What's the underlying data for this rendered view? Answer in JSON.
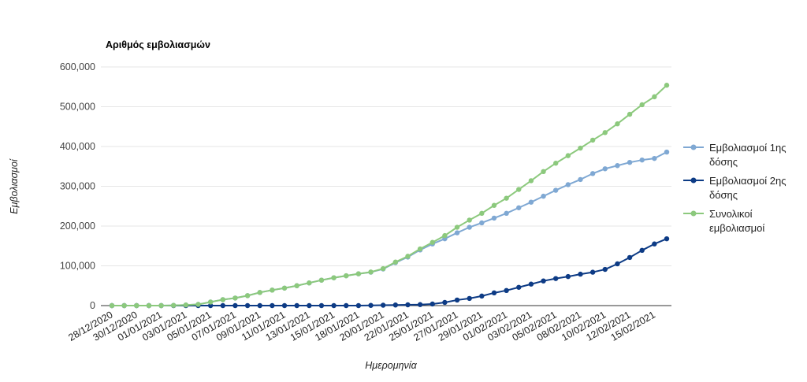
{
  "chart_data": {
    "type": "line",
    "title": "Αριθμός εμβολιασμών",
    "xlabel": "Ημερομηνία",
    "ylabel": "Εμβολιασμοί",
    "ylim": [
      0,
      600000
    ],
    "yticks": [
      "0",
      "100,000",
      "200,000",
      "300,000",
      "400,000",
      "500,000",
      "600,000"
    ],
    "grid": true,
    "legend_position": "right",
    "x": [
      "28/12/2020",
      "29/12/2020",
      "30/12/2020",
      "31/12/2020",
      "01/01/2021",
      "02/01/2021",
      "03/01/2021",
      "04/01/2021",
      "05/01/2021",
      "06/01/2021",
      "07/01/2021",
      "08/01/2021",
      "09/01/2021",
      "10/01/2021",
      "11/01/2021",
      "12/01/2021",
      "13/01/2021",
      "14/01/2021",
      "15/01/2021",
      "17/01/2021",
      "18/01/2021",
      "19/01/2021",
      "20/01/2021",
      "21/01/2021",
      "22/01/2021",
      "24/01/2021",
      "25/01/2021",
      "26/01/2021",
      "27/01/2021",
      "28/01/2021",
      "29/01/2021",
      "31/01/2021",
      "01/02/2021",
      "02/02/2021",
      "03/02/2021",
      "04/02/2021",
      "05/02/2021",
      "07/02/2021",
      "08/02/2021",
      "09/02/2021",
      "10/02/2021",
      "11/02/2021",
      "12/02/2021",
      "14/02/2021",
      "15/02/2021",
      "16/02/2021"
    ],
    "xtick_labels": [
      "28/12/2020",
      "30/12/2020",
      "01/01/2021",
      "03/01/2021",
      "05/01/2021",
      "07/01/2021",
      "09/01/2021",
      "11/01/2021",
      "13/01/2021",
      "15/01/2021",
      "18/01/2021",
      "20/01/2021",
      "22/01/2021",
      "25/01/2021",
      "27/01/2021",
      "29/01/2021",
      "01/02/2021",
      "03/02/2021",
      "05/02/2021",
      "08/02/2021",
      "10/02/2021",
      "12/02/2021",
      "15/02/2021"
    ],
    "series": [
      {
        "name": "Εμβολιασμοί 1ης δόσης",
        "legend_lines": [
          "Εμβολιασμοί 1ης",
          "δόσης"
        ],
        "color": "#7fa8d3",
        "values": [
          0,
          0,
          0,
          0,
          0,
          500,
          1500,
          3000,
          9000,
          15000,
          19000,
          25000,
          33000,
          39000,
          44000,
          50000,
          57000,
          64000,
          70000,
          75000,
          80000,
          84000,
          92000,
          108000,
          122000,
          140000,
          155000,
          168000,
          183000,
          197000,
          208000,
          220000,
          232000,
          246000,
          260000,
          275000,
          290000,
          304000,
          317000,
          332000,
          344000,
          352000,
          360000,
          366000,
          370000,
          386000
        ]
      },
      {
        "name": "Εμβολιασμοί 2ης δόσης",
        "legend_lines": [
          "Εμβολιασμοί 2ης",
          "δόσης"
        ],
        "color": "#0d3b85",
        "values": [
          0,
          0,
          0,
          0,
          0,
          0,
          0,
          0,
          0,
          0,
          0,
          0,
          0,
          0,
          0,
          0,
          0,
          0,
          0,
          0,
          0,
          500,
          1000,
          1500,
          2000,
          2500,
          4000,
          8000,
          14000,
          18000,
          24000,
          32000,
          38000,
          46000,
          54000,
          62000,
          68000,
          73000,
          79000,
          84000,
          91000,
          105000,
          121000,
          139000,
          155000,
          168000
        ]
      },
      {
        "name": "Συνολικοί εμβολιασμοί",
        "legend_lines": [
          "Συνολικοί",
          "εμβολιασμοί"
        ],
        "color": "#8cc97d",
        "values": [
          0,
          0,
          0,
          0,
          0,
          500,
          1500,
          3000,
          9000,
          15000,
          19000,
          25000,
          33000,
          39000,
          44000,
          50000,
          57000,
          64000,
          70000,
          75000,
          80000,
          84500,
          93000,
          109500,
          124000,
          142500,
          159000,
          176000,
          197000,
          215000,
          232000,
          252000,
          270000,
          292000,
          314000,
          337000,
          358000,
          377000,
          396000,
          416000,
          435000,
          457000,
          481000,
          505000,
          525000,
          554000
        ]
      }
    ]
  }
}
